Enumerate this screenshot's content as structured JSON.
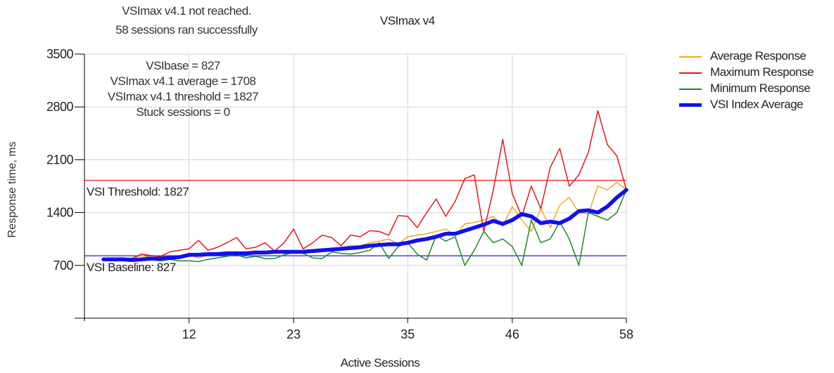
{
  "status": {
    "line1": "VSImax v4.1 not reached.",
    "line2": "58 sessions ran successfully"
  },
  "stats": {
    "vsibase": "VSIbase = 827",
    "vsimax_avg": "VSImax v4.1 average = 1708",
    "vsimax_threshold": "VSImax v4.1 threshold = 1827",
    "stuck": "Stuck sessions = 0"
  },
  "colors": {
    "average": "#f5a623",
    "maximum": "#e8161a",
    "minimum": "#1e8a1e",
    "vsi_index": "#1010f0",
    "threshold_line": "#e8161a",
    "baseline_line": "#2020e0",
    "grid": "#d4d4d4"
  },
  "chart_data": {
    "type": "line",
    "title": "VSImax v4",
    "xlabel": "Active Sessions",
    "ylabel": "Response time, ms",
    "xlim": [
      1,
      58
    ],
    "ylim": [
      0,
      3500
    ],
    "x_ticks": [
      12,
      23,
      35,
      46,
      58
    ],
    "y_ticks": [
      700,
      1400,
      2100,
      2800,
      3500
    ],
    "grid": true,
    "legend_position": "right",
    "reference_lines": [
      {
        "label": "VSI Threshold: 1827",
        "value": 1827
      },
      {
        "label": "VSI Baseline: 827",
        "value": 827
      }
    ],
    "series": [
      {
        "name": "Average Response",
        "x": [
          3,
          4,
          5,
          6,
          7,
          8,
          9,
          10,
          11,
          12,
          13,
          14,
          15,
          16,
          17,
          18,
          19,
          20,
          21,
          22,
          23,
          24,
          25,
          26,
          27,
          28,
          29,
          30,
          31,
          32,
          33,
          34,
          35,
          36,
          37,
          38,
          39,
          40,
          41,
          42,
          43,
          44,
          45,
          46,
          47,
          48,
          49,
          50,
          51,
          52,
          53,
          54,
          55,
          56,
          57,
          58
        ],
        "values": [
          790,
          795,
          790,
          800,
          830,
          805,
          815,
          800,
          830,
          840,
          800,
          835,
          840,
          850,
          860,
          870,
          880,
          860,
          890,
          880,
          870,
          900,
          910,
          880,
          920,
          940,
          960,
          960,
          1000,
          1020,
          1050,
          980,
          1080,
          1100,
          1120,
          1150,
          1180,
          1100,
          1250,
          1270,
          1300,
          1350,
          1220,
          1480,
          1300,
          1150,
          1450,
          1200,
          1500,
          1600,
          1400,
          1380,
          1750,
          1700,
          1800,
          1700
        ]
      },
      {
        "name": "Maximum Response",
        "x": [
          3,
          4,
          5,
          6,
          7,
          8,
          9,
          10,
          11,
          12,
          13,
          14,
          15,
          16,
          17,
          18,
          19,
          20,
          21,
          22,
          23,
          24,
          25,
          26,
          27,
          28,
          29,
          30,
          31,
          32,
          33,
          34,
          35,
          36,
          37,
          38,
          39,
          40,
          41,
          42,
          43,
          44,
          45,
          46,
          47,
          48,
          49,
          50,
          51,
          52,
          53,
          54,
          55,
          56,
          57,
          58
        ],
        "values": [
          790,
          795,
          800,
          790,
          850,
          830,
          820,
          880,
          900,
          920,
          1030,
          900,
          940,
          1000,
          1070,
          920,
          940,
          1000,
          890,
          1000,
          1180,
          920,
          1000,
          1100,
          1070,
          960,
          1100,
          1080,
          1160,
          1150,
          1100,
          1360,
          1350,
          1200,
          1400,
          1580,
          1350,
          1550,
          1850,
          1900,
          1150,
          1700,
          2370,
          1650,
          1350,
          1750,
          1450,
          2000,
          2250,
          1750,
          1900,
          2200,
          2750,
          2300,
          2150,
          1700
        ]
      },
      {
        "name": "Minimum Response",
        "x": [
          3,
          4,
          5,
          6,
          7,
          8,
          9,
          10,
          11,
          12,
          13,
          14,
          15,
          16,
          17,
          18,
          19,
          20,
          21,
          22,
          23,
          24,
          25,
          26,
          27,
          28,
          29,
          30,
          31,
          32,
          33,
          34,
          35,
          36,
          37,
          38,
          39,
          40,
          41,
          42,
          43,
          44,
          45,
          46,
          47,
          48,
          49,
          50,
          51,
          52,
          53,
          54,
          55,
          56,
          57,
          58
        ],
        "values": [
          780,
          790,
          780,
          770,
          780,
          775,
          760,
          780,
          760,
          760,
          750,
          780,
          800,
          820,
          840,
          800,
          820,
          790,
          790,
          840,
          870,
          860,
          800,
          790,
          880,
          860,
          850,
          870,
          900,
          1000,
          790,
          950,
          1000,
          850,
          770,
          1100,
          1020,
          1080,
          700,
          900,
          1150,
          1000,
          1050,
          950,
          700,
          1300,
          1000,
          1050,
          1280,
          1050,
          700,
          1400,
          1350,
          1300,
          1400,
          1700
        ]
      },
      {
        "name": "VSI Index Average",
        "x": [
          3,
          4,
          5,
          6,
          7,
          8,
          9,
          10,
          11,
          12,
          13,
          14,
          15,
          16,
          17,
          18,
          19,
          20,
          21,
          22,
          23,
          24,
          25,
          26,
          27,
          28,
          29,
          30,
          31,
          32,
          33,
          34,
          35,
          36,
          37,
          38,
          39,
          40,
          41,
          42,
          43,
          44,
          45,
          46,
          47,
          48,
          49,
          50,
          51,
          52,
          53,
          54,
          55,
          56,
          57,
          58
        ],
        "values": [
          780,
          780,
          780,
          770,
          780,
          790,
          790,
          800,
          810,
          840,
          840,
          850,
          850,
          860,
          860,
          860,
          870,
          870,
          880,
          880,
          880,
          880,
          890,
          900,
          910,
          920,
          930,
          940,
          960,
          970,
          980,
          980,
          1000,
          1030,
          1050,
          1080,
          1120,
          1120,
          1160,
          1200,
          1240,
          1290,
          1250,
          1300,
          1380,
          1350,
          1260,
          1280,
          1260,
          1320,
          1420,
          1430,
          1400,
          1480,
          1600,
          1700
        ]
      }
    ]
  }
}
